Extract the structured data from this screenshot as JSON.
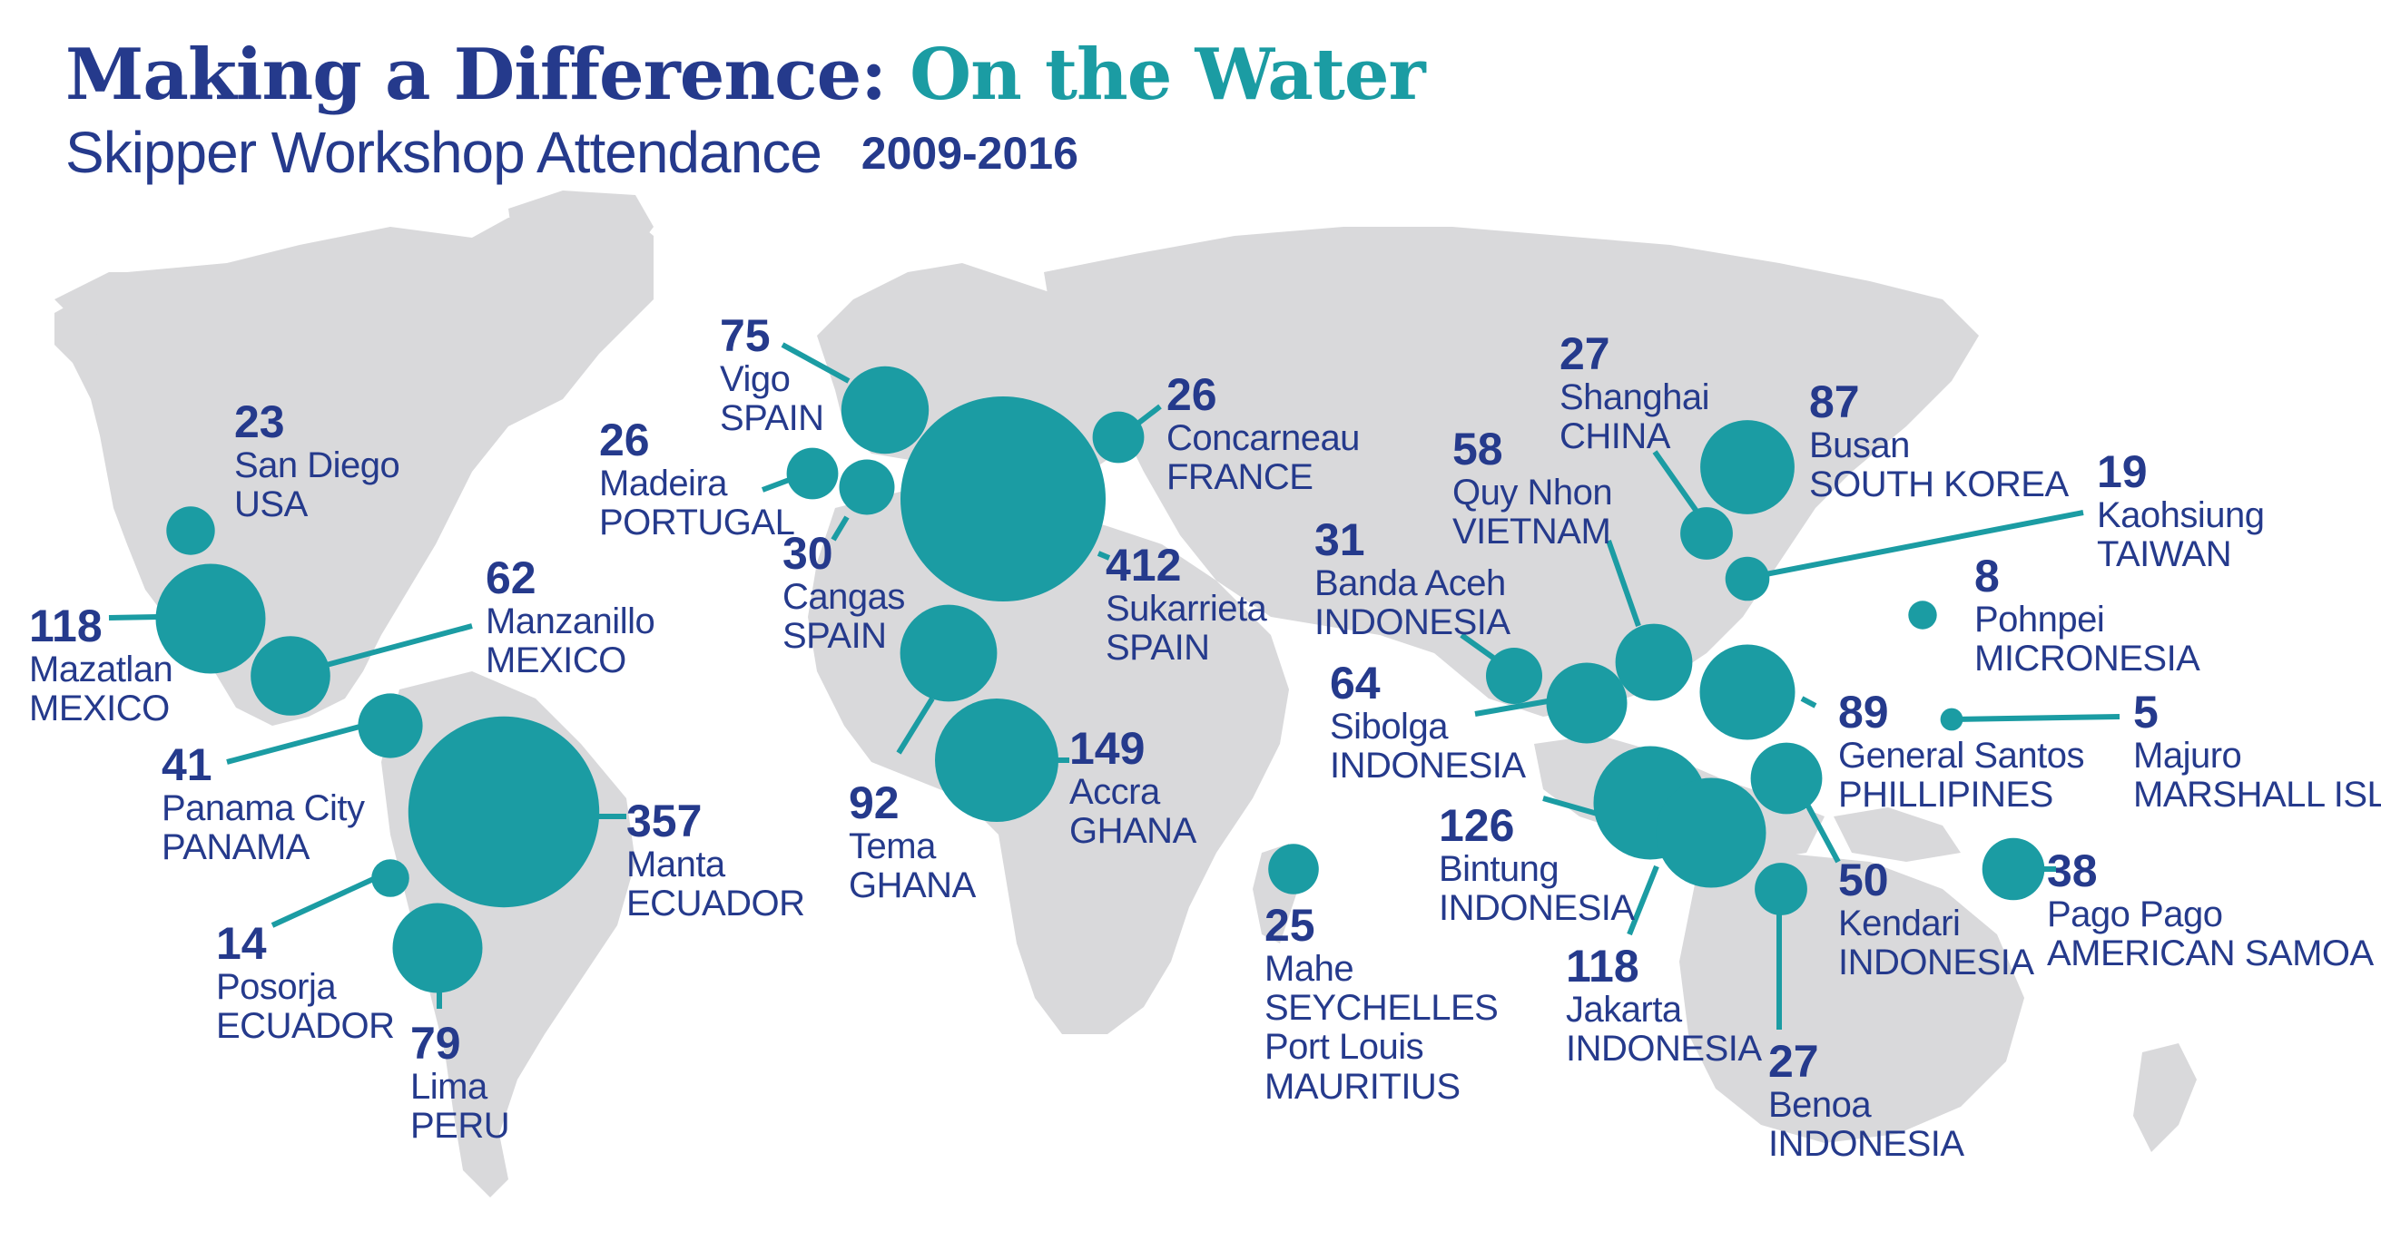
{
  "title": {
    "main": "Making a Difference:",
    "accent": "On the Water"
  },
  "subtitle": "Skipper Workshop Attendance",
  "years": "2009-2016",
  "colors": {
    "title_blue": "#253a8c",
    "teal": "#1b9ca3",
    "land": "#d9d9db"
  },
  "chart_data": {
    "type": "bubble-map",
    "measure": "Skipper Workshop Attendance",
    "period": "2009-2016",
    "locations": [
      {
        "value": 23,
        "city": "San Diego",
        "country": "USA"
      },
      {
        "value": 118,
        "city": "Mazatlan",
        "country": "MEXICO"
      },
      {
        "value": 62,
        "city": "Manzanillo",
        "country": "MEXICO"
      },
      {
        "value": 41,
        "city": "Panama City",
        "country": "PANAMA"
      },
      {
        "value": 357,
        "city": "Manta",
        "country": "ECUADOR"
      },
      {
        "value": 14,
        "city": "Posorja",
        "country": "ECUADOR"
      },
      {
        "value": 79,
        "city": "Lima",
        "country": "PERU"
      },
      {
        "value": 75,
        "city": "Vigo",
        "country": "SPAIN"
      },
      {
        "value": 26,
        "city": "Madeira",
        "country": "PORTUGAL"
      },
      {
        "value": 30,
        "city": "Cangas",
        "country": "SPAIN"
      },
      {
        "value": 26,
        "city": "Concarneau",
        "country": "FRANCE"
      },
      {
        "value": 412,
        "city": "Sukarrieta",
        "country": "SPAIN"
      },
      {
        "value": 92,
        "city": "Tema",
        "country": "GHANA"
      },
      {
        "value": 149,
        "city": "Accra",
        "country": "GHANA"
      },
      {
        "value": 25,
        "city": "Mahe",
        "country": "SEYCHELLES",
        "city2": "Port Louis",
        "country2": "MAURITIUS"
      },
      {
        "value": 27,
        "city": "Shanghai",
        "country": "CHINA"
      },
      {
        "value": 58,
        "city": "Quy Nhon",
        "country": "VIETNAM"
      },
      {
        "value": 31,
        "city": "Banda Aceh",
        "country": "INDONESIA"
      },
      {
        "value": 64,
        "city": "Sibolga",
        "country": "INDONESIA"
      },
      {
        "value": 126,
        "city": "Bintung",
        "country": "INDONESIA"
      },
      {
        "value": 118,
        "city": "Jakarta",
        "country": "INDONESIA"
      },
      {
        "value": 27,
        "city": "Benoa",
        "country": "INDONESIA"
      },
      {
        "value": 87,
        "city": "Busan",
        "country": "SOUTH KOREA"
      },
      {
        "value": 19,
        "city": "Kaohsiung",
        "country": "TAIWAN"
      },
      {
        "value": 8,
        "city": "Pohnpei",
        "country": "MICRONESIA"
      },
      {
        "value": 89,
        "city": "General Santos",
        "country": "PHILLIPINES"
      },
      {
        "value": 5,
        "city": "Majuro",
        "country": "MARSHALL ISLANDS"
      },
      {
        "value": 50,
        "city": "Kendari",
        "country": "INDONESIA"
      },
      {
        "value": 38,
        "city": "Pago Pago",
        "country": "AMERICAN SAMOA"
      }
    ]
  }
}
